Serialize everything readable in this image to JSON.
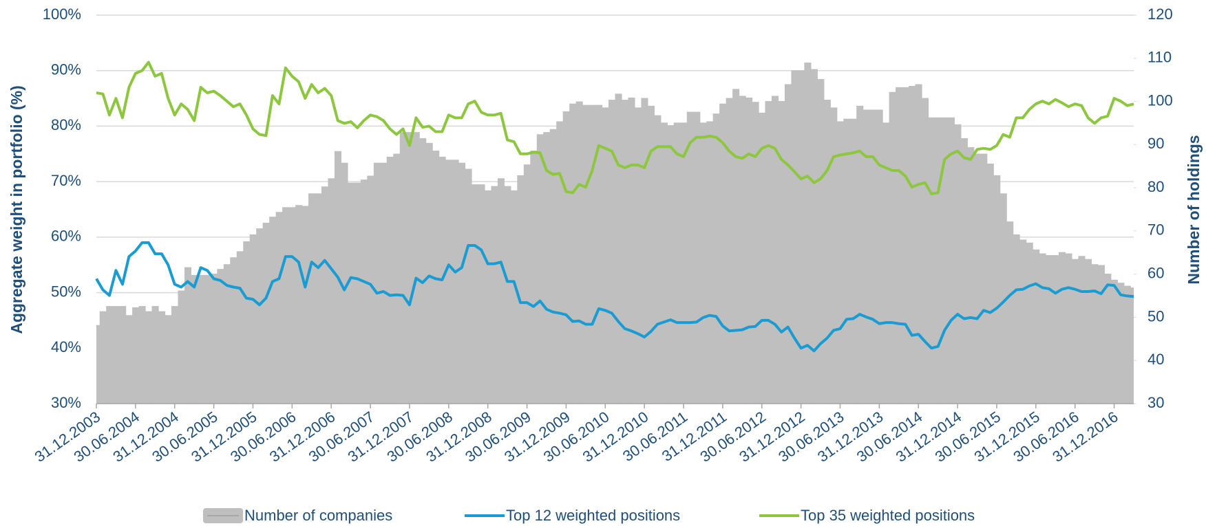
{
  "chart_data": {
    "type": "combo",
    "y_label": "Aggregate weight in portfolio (%)",
    "y2_label": "Number of holdings",
    "ylim": [
      30,
      100
    ],
    "yticks": [
      {
        "value": 30,
        "label": "30%"
      },
      {
        "value": 40,
        "label": "40%"
      },
      {
        "value": 50,
        "label": "50%"
      },
      {
        "value": 60,
        "label": "60%"
      },
      {
        "value": 70,
        "label": "70%"
      },
      {
        "value": 80,
        "label": "80%"
      },
      {
        "value": 90,
        "label": "90%"
      },
      {
        "value": 100,
        "label": "100%"
      }
    ],
    "y2lim": [
      30,
      120
    ],
    "y2ticks": [
      30,
      40,
      50,
      60,
      70,
      80,
      90,
      100,
      110,
      120
    ],
    "grid": true,
    "legend": "bottom",
    "categories": [
      "31.12.2003",
      null,
      null,
      null,
      null,
      null,
      "30.06.2004",
      null,
      null,
      null,
      null,
      null,
      "31.12.2004",
      null,
      null,
      null,
      null,
      null,
      "30.06.2005",
      null,
      null,
      null,
      null,
      null,
      "31.12.2005",
      null,
      null,
      null,
      null,
      null,
      "30.06.2006",
      null,
      null,
      null,
      null,
      null,
      "31.12.2006",
      null,
      null,
      null,
      null,
      null,
      "30.06.2007",
      null,
      null,
      null,
      null,
      null,
      "31.12.2007",
      null,
      null,
      null,
      null,
      null,
      "30.06.2008",
      null,
      null,
      null,
      null,
      null,
      "31.12.2008",
      null,
      null,
      null,
      null,
      null,
      "30.06.2009",
      null,
      null,
      null,
      null,
      null,
      "31.12.2009",
      null,
      null,
      null,
      null,
      null,
      "30.06.2010",
      null,
      null,
      null,
      null,
      null,
      "31.12.2010",
      null,
      null,
      null,
      null,
      null,
      "30.06.2011",
      null,
      null,
      null,
      null,
      null,
      "31.12.2011",
      null,
      null,
      null,
      null,
      null,
      "30.06.2012",
      null,
      null,
      null,
      null,
      null,
      "31.12.2012",
      null,
      null,
      null,
      null,
      null,
      "30.06.2013",
      null,
      null,
      null,
      null,
      null,
      "31.12.2013",
      null,
      null,
      null,
      null,
      null,
      "30.06.2014",
      null,
      null,
      null,
      null,
      null,
      "31.12.2014",
      null,
      null,
      null,
      null,
      null,
      "30.06.2015",
      null,
      null,
      null,
      null,
      null,
      "31.12.2015",
      null,
      null,
      null,
      null,
      null,
      "30.06.2016",
      null,
      null,
      null,
      null,
      null,
      "31.12.2016",
      null,
      null,
      null
    ],
    "series": [
      {
        "name": "Number of companies",
        "type": "bar",
        "axis": "y2",
        "color": "#bfbfbf",
        "values": [
          48.2,
          51.4,
          52.6,
          52.6,
          52.6,
          50.5,
          52.3,
          52.6,
          51.4,
          52.6,
          51.4,
          50.5,
          52.6,
          56.2,
          61.6,
          59.8,
          59.8,
          59.8,
          60.1,
          61.2,
          62.3,
          63.9,
          65.3,
          67.6,
          69.2,
          70.6,
          71.9,
          73.3,
          74.4,
          75.5,
          75.5,
          76,
          75.8,
          78.7,
          78.7,
          80.3,
          82.2,
          88.5,
          85.8,
          81.2,
          81.2,
          81.9,
          82.8,
          85.8,
          85.8,
          87.2,
          87.9,
          92.9,
          92.9,
          92.9,
          91.5,
          90.4,
          88.6,
          87.2,
          86.5,
          86.5,
          85.8,
          84.4,
          80.8,
          80.8,
          79.4,
          80.4,
          82.2,
          80.4,
          79.4,
          82.9,
          85.4,
          88.6,
          92.4,
          92.9,
          93.6,
          95.4,
          97.7,
          99.5,
          100,
          99.2,
          99.2,
          99.2,
          98.6,
          100.4,
          101.8,
          100.4,
          100.9,
          98.6,
          100.8,
          99,
          96.8,
          95.1,
          94.5,
          95.1,
          95.1,
          97.6,
          97.6,
          95.1,
          95.4,
          97.2,
          99.5,
          100.8,
          102.9,
          101.3,
          100.9,
          99.9,
          97.4,
          100.1,
          101.3,
          100.1,
          104,
          107.2,
          107.2,
          109,
          107.5,
          105.2,
          100.4,
          98.6,
          95.4,
          96,
          96,
          99,
          98.1,
          98.1,
          98.1,
          95.1,
          102.2,
          103.3,
          103.3,
          103.6,
          104,
          100.8,
          96.3,
          96.3,
          96.3,
          96.3,
          94.7,
          91.5,
          89.4,
          87.9,
          87.9,
          85.6,
          82.9,
          78.7,
          72.2,
          69.2,
          68,
          67.3,
          65.7,
          64.8,
          64.4,
          64.4,
          65.1,
          64.8,
          63.5,
          64.2,
          63.5,
          62.3,
          62.1,
          60.1,
          58.7,
          58,
          57.3,
          56.9
        ]
      },
      {
        "name": "Top 12 weighted positions",
        "type": "line",
        "axis": "y",
        "color": "#1a9bd1",
        "values": [
          52.5,
          50.5,
          49.5,
          54,
          51.5,
          56.5,
          57.5,
          59,
          59,
          57,
          57,
          55,
          51.5,
          51,
          52,
          51,
          54.5,
          54,
          52.5,
          52.2,
          51.3,
          51,
          50.8,
          49,
          48.8,
          47.8,
          49,
          52,
          52.5,
          56.5,
          56.5,
          55.5,
          51,
          55.5,
          54.5,
          55.8,
          54.3,
          52.8,
          50.5,
          52.7,
          52.5,
          52,
          51.5,
          49.9,
          50.2,
          49.5,
          49.6,
          49.5,
          47.8,
          52.6,
          51.8,
          53,
          52.5,
          52.3,
          55,
          53.7,
          54.5,
          58.5,
          58.5,
          57.7,
          55.2,
          55.2,
          55.5,
          52,
          52,
          48.2,
          48.2,
          47.5,
          48.5,
          47,
          46.5,
          46.3,
          46,
          44.8,
          44.9,
          44.3,
          44.3,
          47.1,
          46.8,
          46.3,
          44.8,
          43.5,
          43.1,
          42.6,
          42,
          43,
          44.3,
          44.7,
          45.1,
          44.6,
          44.6,
          44.6,
          44.7,
          45.5,
          45.9,
          45.7,
          44,
          43.1,
          43.2,
          43.3,
          43.8,
          43.9,
          45,
          45,
          44.3,
          42.9,
          43.8,
          41.8,
          40,
          40.5,
          39.5,
          40.8,
          41.8,
          43.2,
          43.5,
          45.2,
          45.3,
          46.1,
          45.6,
          45.2,
          44.4,
          44.6,
          44.6,
          44.4,
          44.3,
          42.3,
          42.5,
          41.2,
          40,
          40.3,
          43.2,
          45,
          46.1,
          45.3,
          45.5,
          45.3,
          46.8,
          46.4,
          47.2,
          48.3,
          49.5,
          50.5,
          50.6,
          51.2,
          51.6,
          50.9,
          50.7,
          49.9,
          50.6,
          50.9,
          50.6,
          50.2,
          50.2,
          50.3,
          49.8,
          51.4,
          51.3,
          49.6,
          49.4,
          49.3
        ]
      },
      {
        "name": "Top 35 weighted positions",
        "type": "line",
        "axis": "y",
        "color": "#8dc63f",
        "values": [
          86,
          85.8,
          82,
          85,
          81.5,
          87,
          89.5,
          90,
          91.5,
          89,
          89.5,
          85,
          82,
          84,
          83,
          81,
          87,
          86,
          86.3,
          85.5,
          84.5,
          83.5,
          84,
          82,
          79.5,
          78.5,
          78.3,
          85.5,
          84,
          90.5,
          89,
          88,
          85,
          87.5,
          86,
          86.8,
          85.5,
          81,
          80.5,
          80.8,
          79.7,
          81,
          82,
          81.7,
          81,
          79.5,
          78.5,
          79.5,
          76.5,
          81.5,
          79.8,
          80,
          79,
          79,
          82,
          81.5,
          81.5,
          84,
          84.5,
          82.5,
          82,
          82,
          82.3,
          77.5,
          77.2,
          75,
          75,
          75.3,
          75.2,
          72,
          71.3,
          71.5,
          68.2,
          68,
          69.5,
          69,
          72,
          76.5,
          76,
          75.5,
          73,
          72.5,
          73,
          73,
          72.5,
          75.5,
          76.3,
          76.3,
          76.3,
          75,
          74.5,
          77,
          78,
          78,
          78.2,
          78,
          77,
          75.5,
          74.5,
          74.2,
          75,
          74.5,
          76,
          76.5,
          76,
          74,
          73,
          71.8,
          70.5,
          71,
          69.8,
          70.5,
          72,
          74.5,
          74.8,
          75,
          75.2,
          75.5,
          74.5,
          74.5,
          73,
          72.5,
          72,
          72,
          71,
          69,
          69.5,
          69.8,
          67.8,
          68,
          74,
          75,
          75.5,
          74.3,
          74,
          75.8,
          76,
          75.8,
          76.5,
          78.5,
          78,
          81.5,
          81.5,
          83,
          84,
          84.5,
          84,
          84.8,
          84.2,
          83.5,
          84,
          83.7,
          81.5,
          80.5,
          81.5,
          81.8,
          85,
          84.5,
          83.7,
          84
        ]
      }
    ]
  }
}
